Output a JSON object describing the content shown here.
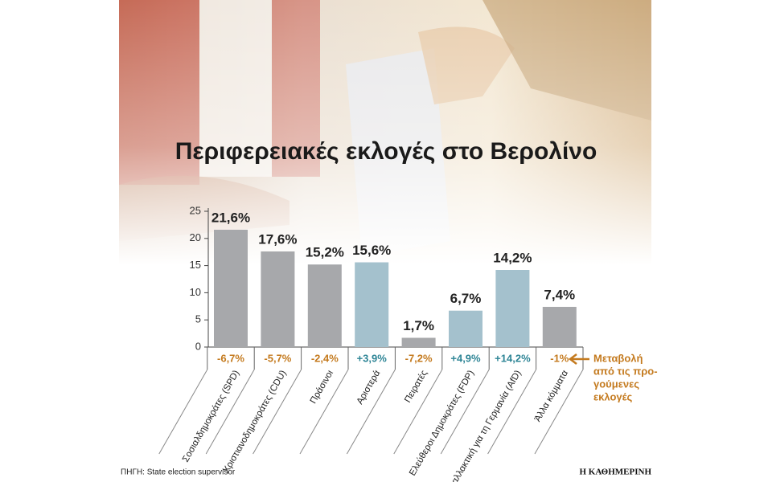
{
  "chart_data": {
    "type": "bar",
    "title": "Περιφερειακές εκλογές στο Βερολίνο",
    "categories": [
      "Σοσιαλδημοκράτες (SPD)",
      "Χριστιανοδημοκράτες (CDU)",
      "Πράσινοι",
      "Αριστερά",
      "Πειρατές",
      "Ελεύθεροι Δημοκράτες (FDP)",
      "Εναλλακτική για τη Γερμανία (AfD)",
      "Άλλα κόμματα"
    ],
    "values": [
      21.6,
      17.6,
      15.2,
      15.6,
      1.7,
      6.7,
      14.2,
      7.4
    ],
    "value_labels": [
      "21,6%",
      "17,6%",
      "15,2%",
      "15,6%",
      "1,7%",
      "6,7%",
      "14,2%",
      "7,4%"
    ],
    "colors": [
      "#a7a8ab",
      "#a7a8ab",
      "#a7a8ab",
      "#a4c1cd",
      "#a7a8ab",
      "#a4c1cd",
      "#a4c1cd",
      "#a7a8ab"
    ],
    "changes": [
      -6.7,
      -5.7,
      -2.4,
      3.9,
      -7.2,
      4.9,
      14.2,
      -1
    ],
    "change_labels": [
      "-6,7%",
      "-5,7%",
      "-2,4%",
      "+3,9%",
      "-7,2%",
      "+4,9%",
      "+14,2%",
      "-1%"
    ],
    "change_colors": {
      "up": "#2e8596",
      "down": "#c47a1e"
    },
    "change_note": [
      "Μεταβολή",
      "από τις προ-",
      "γούμενες",
      "εκλογές"
    ],
    "ylim": [
      0,
      25
    ],
    "yticks": [
      0,
      5,
      10,
      15,
      20,
      25
    ],
    "source": "ΠΗΓΗ: State election supervisor",
    "brand": "Η ΚΑΘΗΜΕΡΙΝΗ"
  }
}
